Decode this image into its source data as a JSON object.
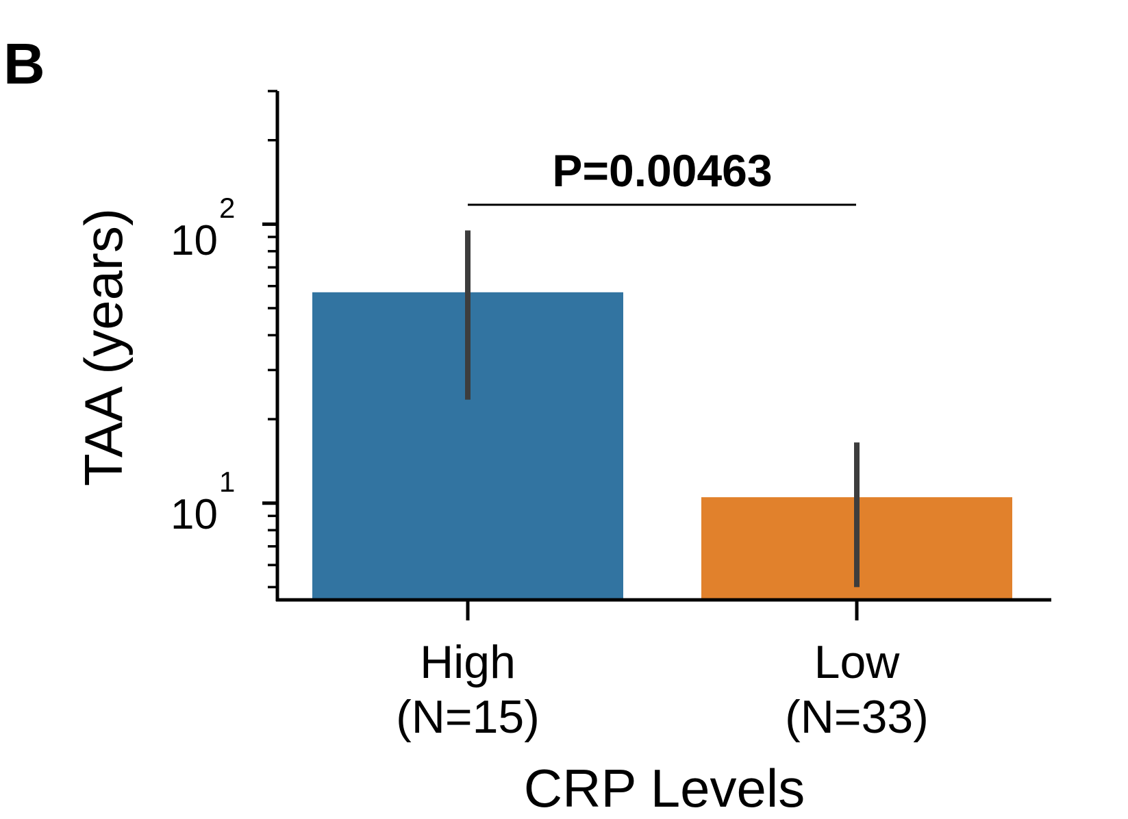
{
  "panel_label": "B",
  "chart_data": {
    "type": "bar",
    "categories": [
      "High",
      "Low"
    ],
    "category_labels": [
      {
        "line1": "High",
        "line2": "(N=15)"
      },
      {
        "line1": "Low",
        "line2": "(N=33)"
      }
    ],
    "values": [
      57,
      10.5
    ],
    "error_bars": [
      [
        23.5,
        95
      ],
      [
        5,
        16.5
      ]
    ],
    "colors": [
      "#3274a1",
      "#e1812c"
    ],
    "xlabel": "CRP Levels",
    "ylabel": "TAA (years)",
    "yscale": "log",
    "ylim": [
      4.5,
      300
    ],
    "yticks": [
      {
        "base": "10",
        "exp": "1",
        "value": 10
      },
      {
        "base": "10",
        "exp": "2",
        "value": 100
      }
    ],
    "annotation": "P=0.00463",
    "grid": false
  }
}
